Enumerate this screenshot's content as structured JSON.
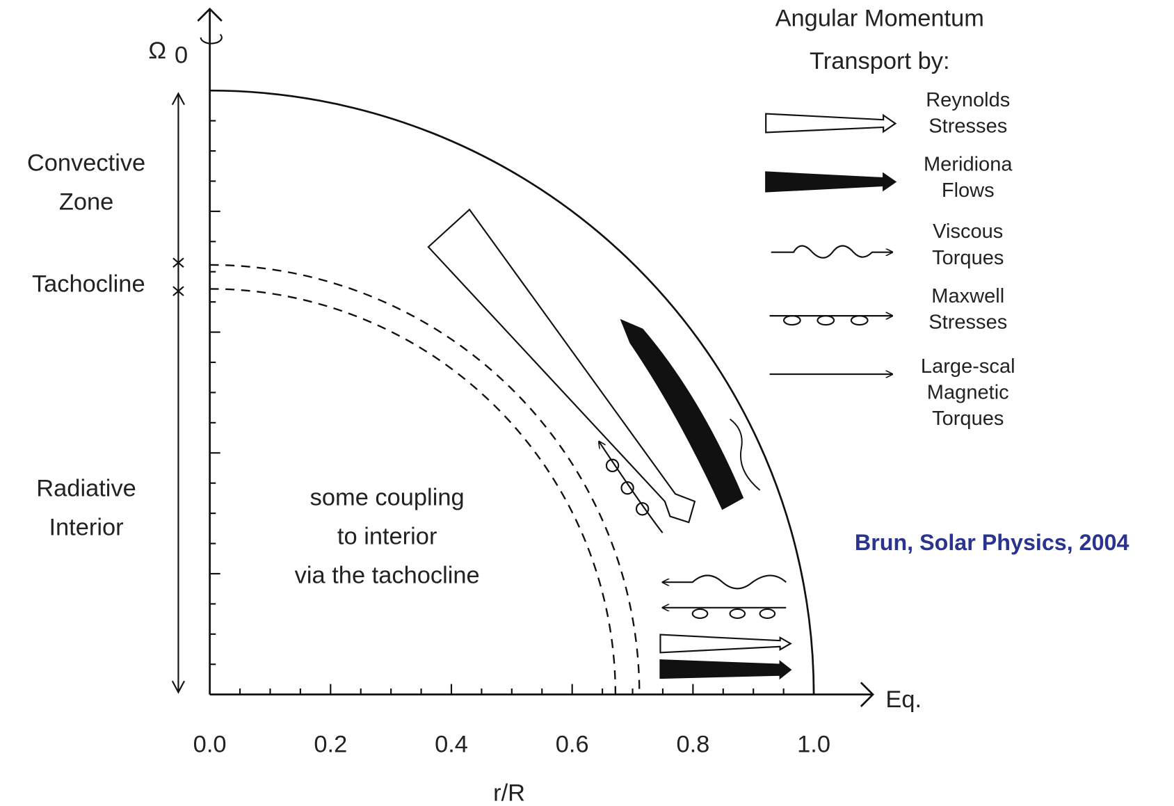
{
  "legend": {
    "title": [
      "Angular Momentum",
      "Transport by:"
    ],
    "items": [
      {
        "label": [
          "Reynolds",
          "Stresses"
        ]
      },
      {
        "label": [
          "Meridiona",
          "Flows"
        ]
      },
      {
        "label": [
          "Viscous",
          "Torques"
        ]
      },
      {
        "label": [
          "Maxwell",
          "Stresses"
        ]
      },
      {
        "label": [
          "Large-scal",
          "Magnetic",
          "Torques"
        ]
      }
    ]
  },
  "axis": {
    "omega_symbol": "Ω",
    "omega_subscript": "0",
    "x_end_label": "Eq.",
    "x_title": "r/R",
    "x_tick_labels": [
      "0.0",
      "0.2",
      "0.4",
      "0.6",
      "0.8",
      "1.0"
    ]
  },
  "zones": {
    "convective": [
      "Convective",
      "Zone"
    ],
    "tachocline": [
      "Tachocline"
    ],
    "radiative": [
      "Radiative",
      "Interior"
    ]
  },
  "annotation": [
    "some coupling",
    "to interior",
    "via the tachocline"
  ],
  "citation": "Brun, Solar Physics, 2004"
}
